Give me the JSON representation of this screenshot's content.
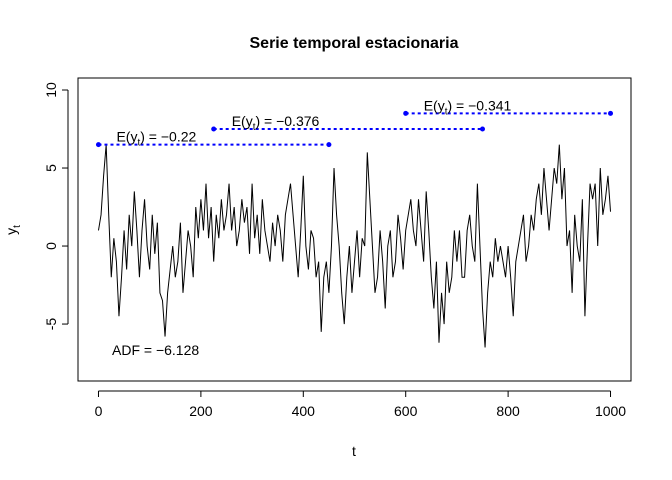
{
  "chart_data": {
    "type": "line",
    "title": "Serie temporal estacionaria",
    "xlabel": "t",
    "ylabel": {
      "base": "y",
      "sub": "t"
    },
    "xlim": [
      -40,
      1040
    ],
    "ylim": [
      -8.65,
      10.77
    ],
    "xticks": [
      0,
      200,
      400,
      600,
      800,
      1000
    ],
    "yticks": [
      -5,
      0,
      5,
      10
    ],
    "series": [
      {
        "color": "#000000",
        "x": [
          0,
          5,
          10,
          15,
          20,
          25,
          30,
          35,
          40,
          45,
          50,
          55,
          60,
          65,
          70,
          75,
          80,
          85,
          90,
          95,
          100,
          105,
          110,
          115,
          120,
          125,
          130,
          135,
          140,
          145,
          150,
          155,
          160,
          165,
          170,
          175,
          180,
          185,
          190,
          195,
          200,
          205,
          210,
          215,
          220,
          225,
          230,
          235,
          240,
          245,
          250,
          255,
          260,
          265,
          270,
          275,
          280,
          285,
          290,
          295,
          300,
          305,
          310,
          315,
          320,
          325,
          330,
          335,
          340,
          345,
          350,
          355,
          360,
          365,
          370,
          375,
          380,
          385,
          390,
          395,
          400,
          405,
          410,
          415,
          420,
          425,
          430,
          435,
          440,
          445,
          450,
          455,
          460,
          465,
          470,
          475,
          480,
          485,
          490,
          495,
          500,
          505,
          510,
          515,
          520,
          525,
          530,
          535,
          540,
          545,
          550,
          555,
          560,
          565,
          570,
          575,
          580,
          585,
          590,
          595,
          600,
          605,
          610,
          615,
          620,
          625,
          630,
          635,
          640,
          645,
          650,
          655,
          660,
          665,
          670,
          675,
          680,
          685,
          690,
          695,
          700,
          705,
          710,
          715,
          720,
          725,
          730,
          735,
          740,
          745,
          750,
          755,
          760,
          765,
          770,
          775,
          780,
          785,
          790,
          795,
          800,
          805,
          810,
          815,
          820,
          825,
          830,
          835,
          840,
          845,
          850,
          855,
          860,
          865,
          870,
          875,
          880,
          885,
          890,
          895,
          900,
          905,
          910,
          915,
          920,
          925,
          930,
          935,
          940,
          945,
          950,
          955,
          960,
          965,
          970,
          975,
          980,
          985,
          990,
          995,
          1000
        ],
        "values": [
          1,
          2,
          4.5,
          6.5,
          2,
          -2,
          0.5,
          -1,
          -4.5,
          -2,
          1,
          -1.5,
          2,
          0,
          3.5,
          1,
          -2,
          1,
          3,
          0,
          -1.5,
          2,
          -0.5,
          1.5,
          -3,
          -3.5,
          -5.8,
          -3,
          -1.5,
          0,
          -2,
          -1,
          1.5,
          -3,
          -1,
          1,
          0,
          -2,
          2.5,
          0.5,
          3,
          1,
          4,
          0.5,
          2.5,
          -1,
          2,
          0.5,
          3,
          1,
          2,
          4,
          1,
          2.5,
          0,
          1,
          3,
          1.5,
          2.5,
          -0.5,
          4,
          0.5,
          2,
          -0.5,
          3,
          1,
          0,
          -1,
          1.5,
          0,
          2,
          1,
          -1,
          2,
          3,
          4,
          2,
          0,
          -2,
          1,
          4.5,
          0,
          -1.5,
          1,
          0.5,
          -2,
          -1,
          -5.5,
          -2,
          -1,
          -3,
          0,
          5,
          2,
          0,
          -3,
          -5,
          -2,
          0,
          -3,
          -1,
          1,
          -2,
          0.5,
          0,
          6,
          3,
          0,
          -3,
          -2,
          1,
          -1,
          -4,
          0,
          1,
          -2,
          -1,
          2,
          0.5,
          -1.5,
          1,
          2,
          3,
          1,
          0,
          3,
          1,
          -1,
          3.5,
          1,
          -2,
          -4,
          -1,
          -6.2,
          -3,
          -5,
          -1,
          -3,
          -2,
          1,
          -1,
          1,
          -2,
          -2,
          1,
          2,
          0,
          -1,
          4,
          0,
          -4,
          -6.5,
          -3,
          -1,
          -2,
          0.5,
          -1,
          0,
          -1,
          -2,
          0,
          -2,
          -4.5,
          -1,
          0,
          1,
          2,
          -1,
          0,
          2,
          1,
          3,
          4,
          2,
          5,
          3,
          1,
          3,
          5,
          4,
          6.5,
          3,
          5,
          0,
          1,
          -3,
          2,
          0,
          -1,
          3,
          -4.5,
          0,
          4,
          3,
          4,
          0,
          5,
          2,
          3,
          4.5,
          2.2
        ]
      }
    ],
    "segments": [
      {
        "color": "#0000ff",
        "x": [
          0,
          450
        ],
        "y": [
          6.5,
          6.5
        ],
        "label": {
          "pre": "E(y",
          "sub": "t",
          "post": ") = −0.22"
        }
      },
      {
        "color": "#0000ff",
        "x": [
          225,
          750
        ],
        "y": [
          7.5,
          7.5
        ],
        "label": {
          "pre": "E(y",
          "sub": "t",
          "post": ") = −0.376"
        }
      },
      {
        "color": "#0000ff",
        "x": [
          600,
          1000
        ],
        "y": [
          8.5,
          8.5
        ],
        "label": {
          "pre": "E(y",
          "sub": "t",
          "post": ") = −0.341"
        }
      }
    ],
    "annotations": [
      {
        "text": "ADF = −6.128"
      }
    ]
  }
}
